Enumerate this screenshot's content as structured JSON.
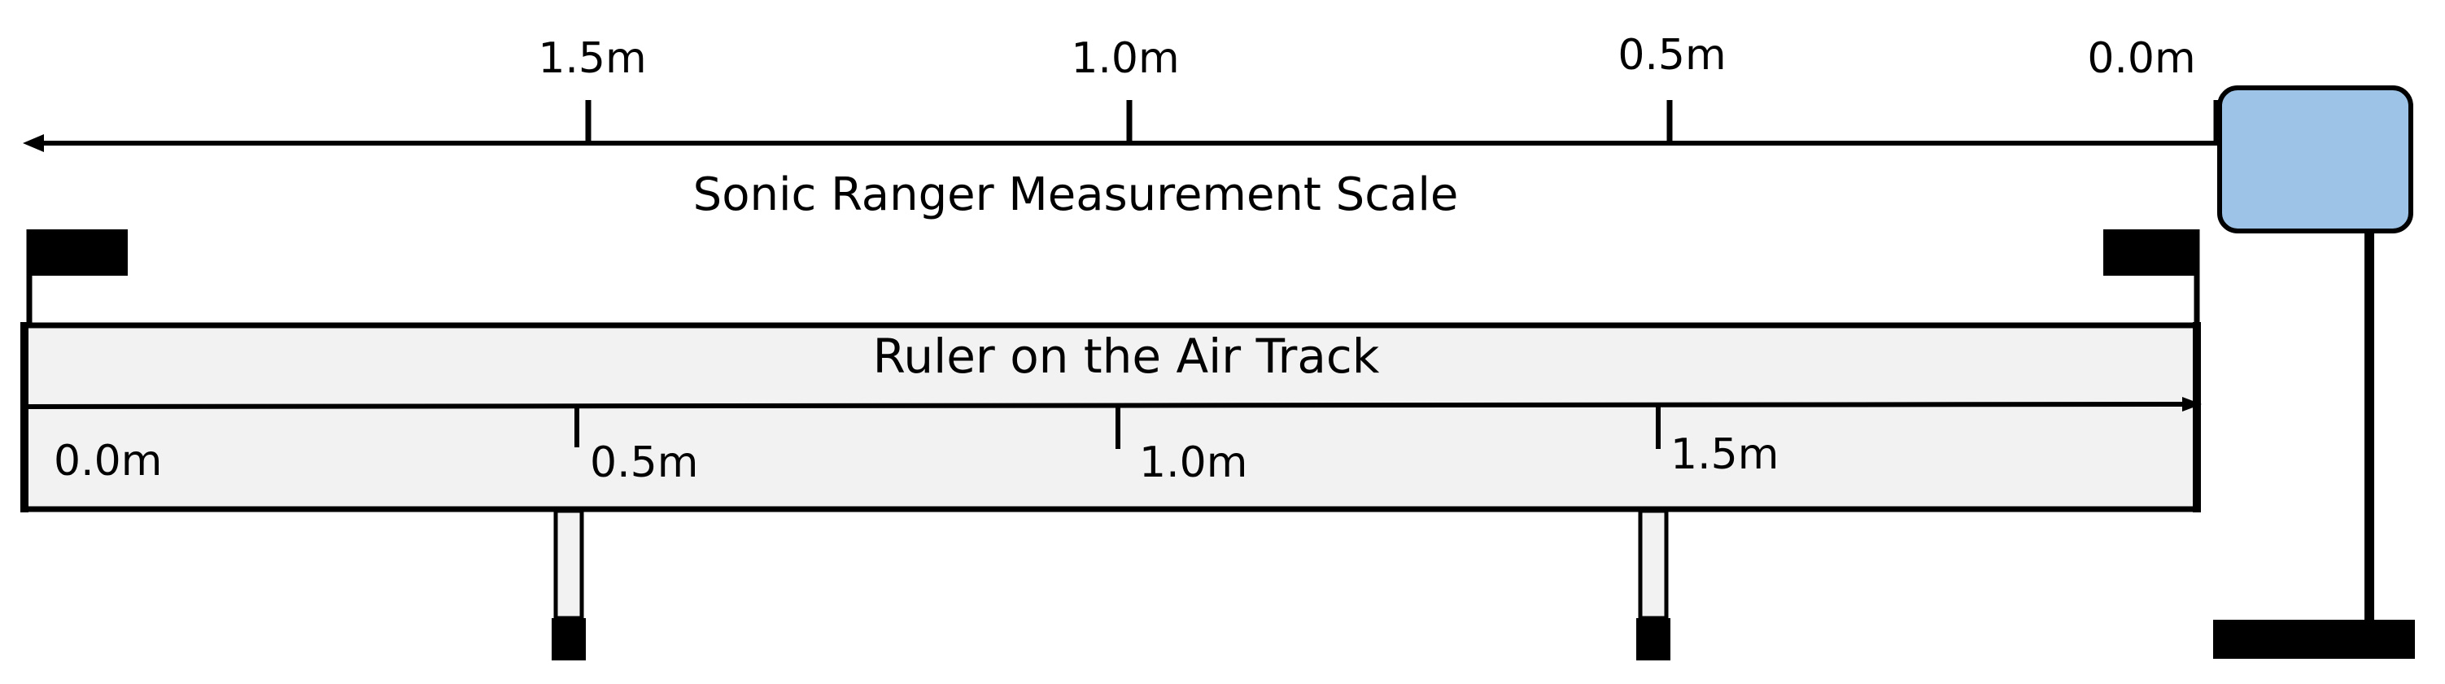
{
  "diagram": {
    "sonic_scale": {
      "title": "Sonic Ranger Measurement Scale",
      "tick_labels": [
        "1.5m",
        "1.0m",
        "0.5m",
        "0.0m"
      ]
    },
    "air_track": {
      "title": "Ruler on the Air Track",
      "tick_labels": [
        "0.0m",
        "0.5m",
        "1.0m",
        "1.5m"
      ]
    },
    "colors": {
      "sensor_fill": "#9dc3e6",
      "track_fill": "#f2f2f2",
      "line": "#000000"
    }
  }
}
